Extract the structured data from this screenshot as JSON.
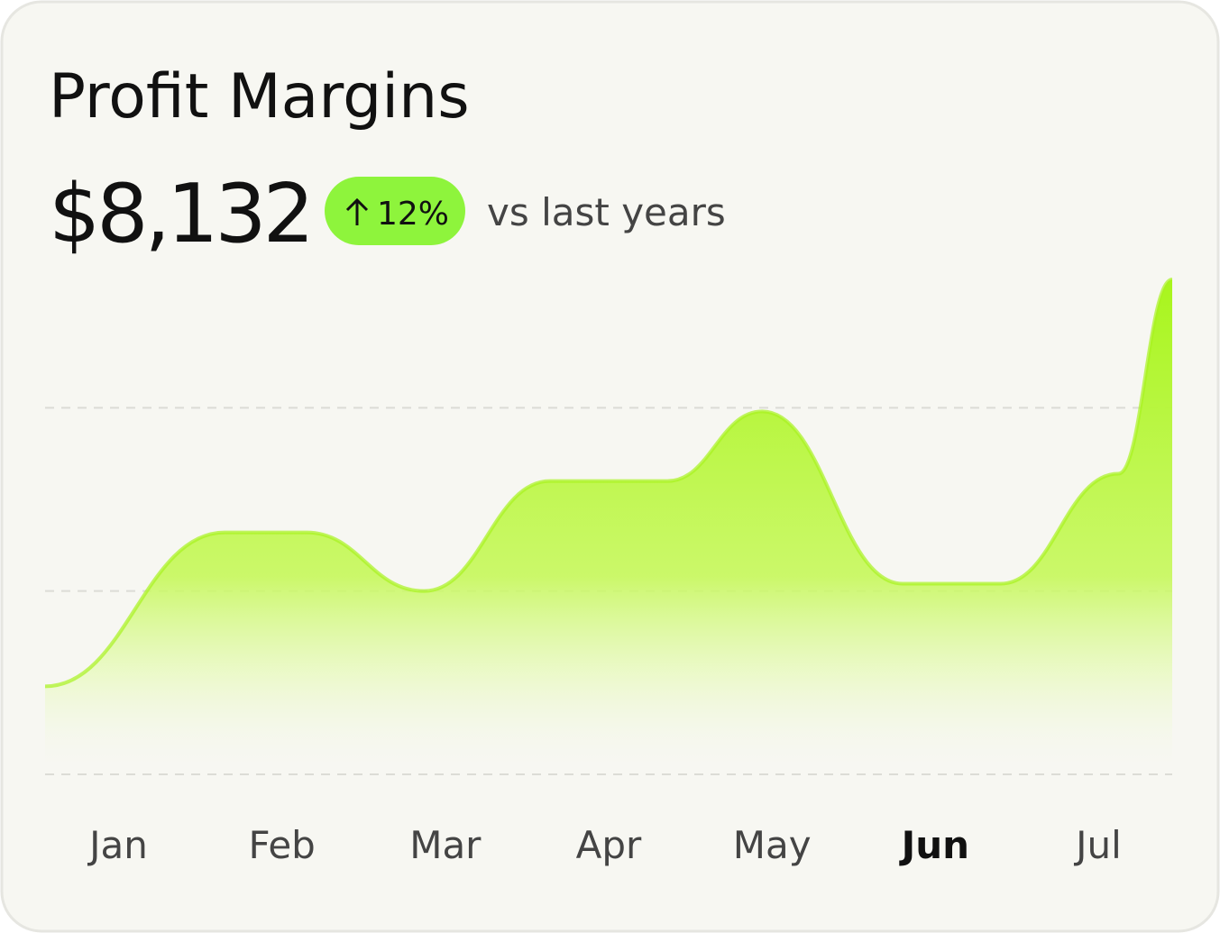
{
  "header": {
    "title": "Profit Margins",
    "amount": "$8,132",
    "change": "12%",
    "comparison": "vs last years"
  },
  "chart_data": {
    "type": "area",
    "categories": [
      "Jan",
      "Feb",
      "Mar",
      "Apr",
      "May",
      "Jun",
      "Jul"
    ],
    "highlight_index": 5,
    "series": [
      {
        "color": "#a8f21f",
        "x": [
          -0.45,
          0.65,
          1.15,
          1.87,
          2.64,
          3.36,
          3.94,
          4.8,
          5.4,
          6.12,
          6.45
        ],
        "values": [
          24,
          66,
          66,
          50,
          80,
          80,
          99,
          52,
          52,
          82,
          135
        ]
      }
    ],
    "xlim": [
      -0.45,
      6.45
    ],
    "ylim": [
      0,
      135
    ],
    "gridlines": [
      0,
      50,
      100
    ]
  }
}
